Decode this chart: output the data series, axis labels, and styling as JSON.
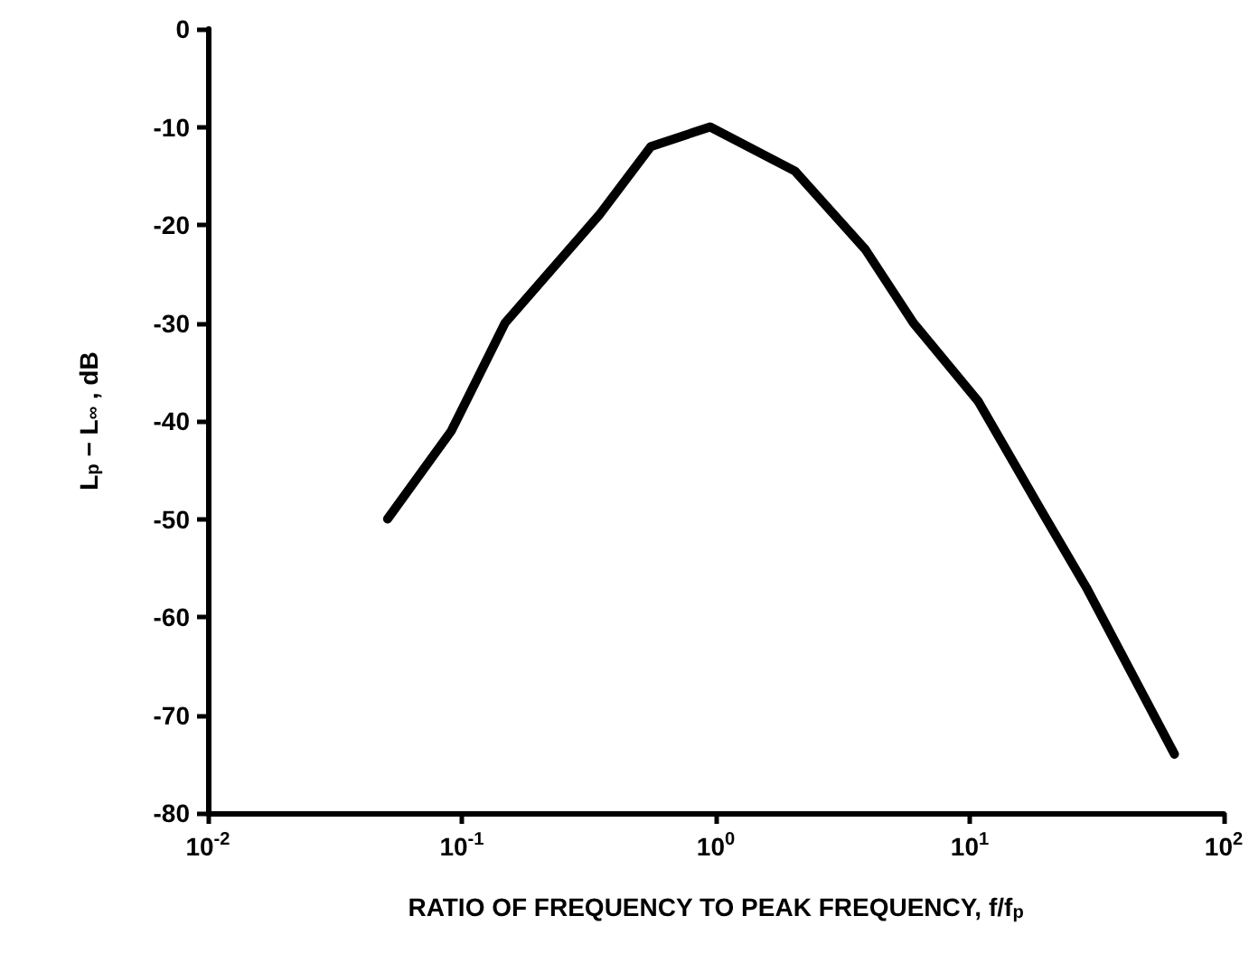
{
  "chart_data": {
    "type": "line",
    "xlabel": "RATIO OF FREQUENCY TO PEAK FREQUENCY, f/f$_{p}$",
    "ylabel": "L$_{p}$ − L$_{∞}$ , dB",
    "x": [
      0.051,
      0.091,
      0.148,
      0.347,
      0.555,
      0.95,
      2.05,
      3.88,
      6.0,
      10.8,
      19,
      28.8,
      64
    ],
    "series": [
      {
        "color": "#000000",
        "values": [
          -50,
          -41,
          -30,
          -19,
          -12,
          -10,
          -14.5,
          -22.5,
          -30,
          -38,
          -49,
          -57,
          -74
        ]
      }
    ],
    "xlim": [
      0.01,
      100
    ],
    "xticks": [
      {
        "value": 0.01,
        "label": "10$^{-2}$"
      },
      {
        "value": 0.1,
        "label": "10$^{-1}$"
      },
      {
        "value": 1,
        "label": "10$^{0}$"
      },
      {
        "value": 10,
        "label": "10$^{1}$"
      },
      {
        "value": 100,
        "label": "10$^{2}$"
      }
    ],
    "ylim": [
      -80,
      0
    ],
    "yticks": [
      -80,
      -70,
      -60,
      -50,
      -40,
      -30,
      -20,
      -10,
      0
    ],
    "log": "x",
    "grid": false,
    "marker": "none",
    "line_style": "solid"
  }
}
